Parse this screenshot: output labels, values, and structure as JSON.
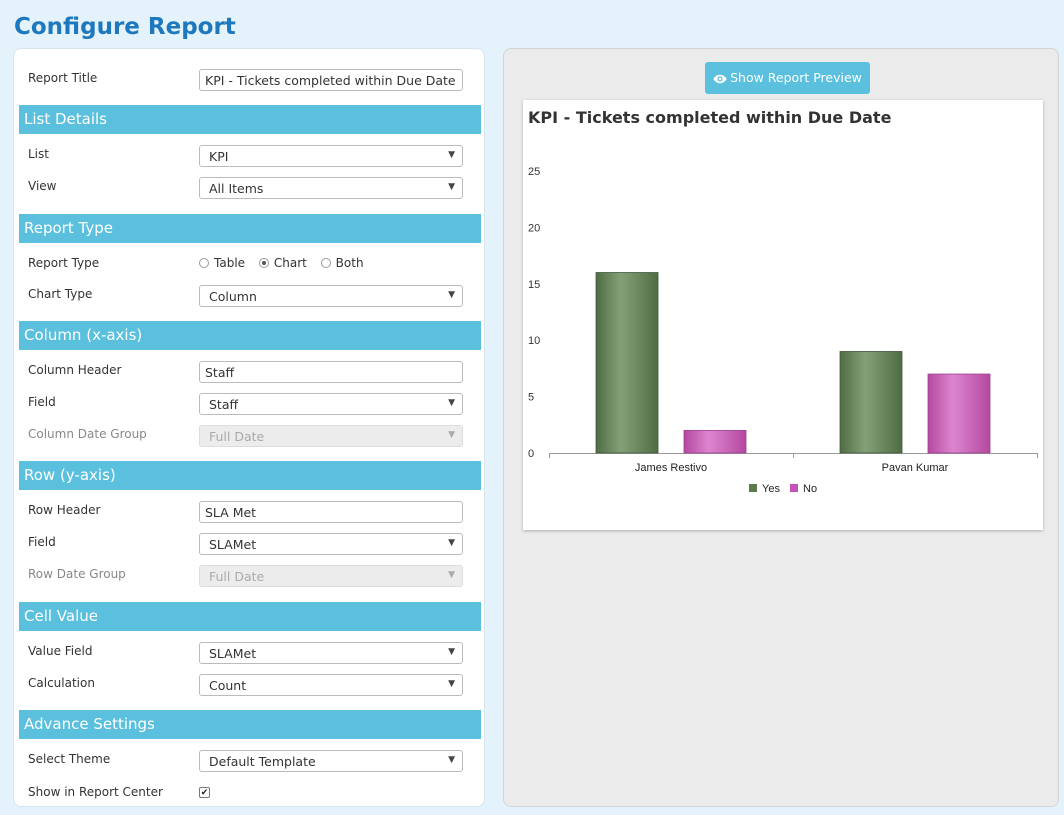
{
  "page_title": "Configure Report",
  "report_title": {
    "label": "Report Title",
    "value": "KPI - Tickets completed within Due Date"
  },
  "list_details": {
    "header": "List Details",
    "list": {
      "label": "List",
      "value": "KPI"
    },
    "view": {
      "label": "View",
      "value": "All Items"
    }
  },
  "report_type": {
    "header": "Report Type",
    "type": {
      "label": "Report Type",
      "options": [
        "Table",
        "Chart",
        "Both"
      ],
      "selected": "Chart"
    },
    "chart_type": {
      "label": "Chart Type",
      "value": "Column"
    }
  },
  "column_axis": {
    "header": "Column (x-axis)",
    "column_header": {
      "label": "Column Header",
      "value": "Staff"
    },
    "field": {
      "label": "Field",
      "value": "Staff"
    },
    "date_group": {
      "label": "Column Date Group",
      "value": "Full Date"
    }
  },
  "row_axis": {
    "header": "Row (y-axis)",
    "row_header": {
      "label": "Row Header",
      "value": "SLA Met"
    },
    "field": {
      "label": "Field",
      "value": "SLAMet"
    },
    "date_group": {
      "label": "Row Date Group",
      "value": "Full Date"
    }
  },
  "cell_value": {
    "header": "Cell Value",
    "value_field": {
      "label": "Value Field",
      "value": "SLAMet"
    },
    "calculation": {
      "label": "Calculation",
      "value": "Count"
    }
  },
  "advance_settings": {
    "header": "Advance Settings",
    "theme": {
      "label": "Select Theme",
      "value": "Default Template"
    },
    "show_in_center": {
      "label": "Show in Report Center",
      "checked": true
    }
  },
  "preview_button": "Show Report Preview",
  "icons": {
    "preview": "eye-icon",
    "select": "caret-down-icon"
  },
  "colors": {
    "brand": "#1e78be",
    "section": "#5bc0de",
    "yes": "#5b7a4d",
    "no": "#c552b4"
  },
  "chart_data": {
    "type": "bar",
    "title": "KPI - Tickets completed within Due Date",
    "categories": [
      "James Restivo",
      "Pavan Kumar"
    ],
    "series": [
      {
        "name": "Yes",
        "values": [
          16,
          9
        ]
      },
      {
        "name": "No",
        "values": [
          2,
          7
        ]
      }
    ],
    "y_ticks": [
      0,
      5,
      10,
      15,
      20,
      25
    ],
    "ylim": [
      0,
      25
    ],
    "legend": "bottom",
    "grid": false
  }
}
